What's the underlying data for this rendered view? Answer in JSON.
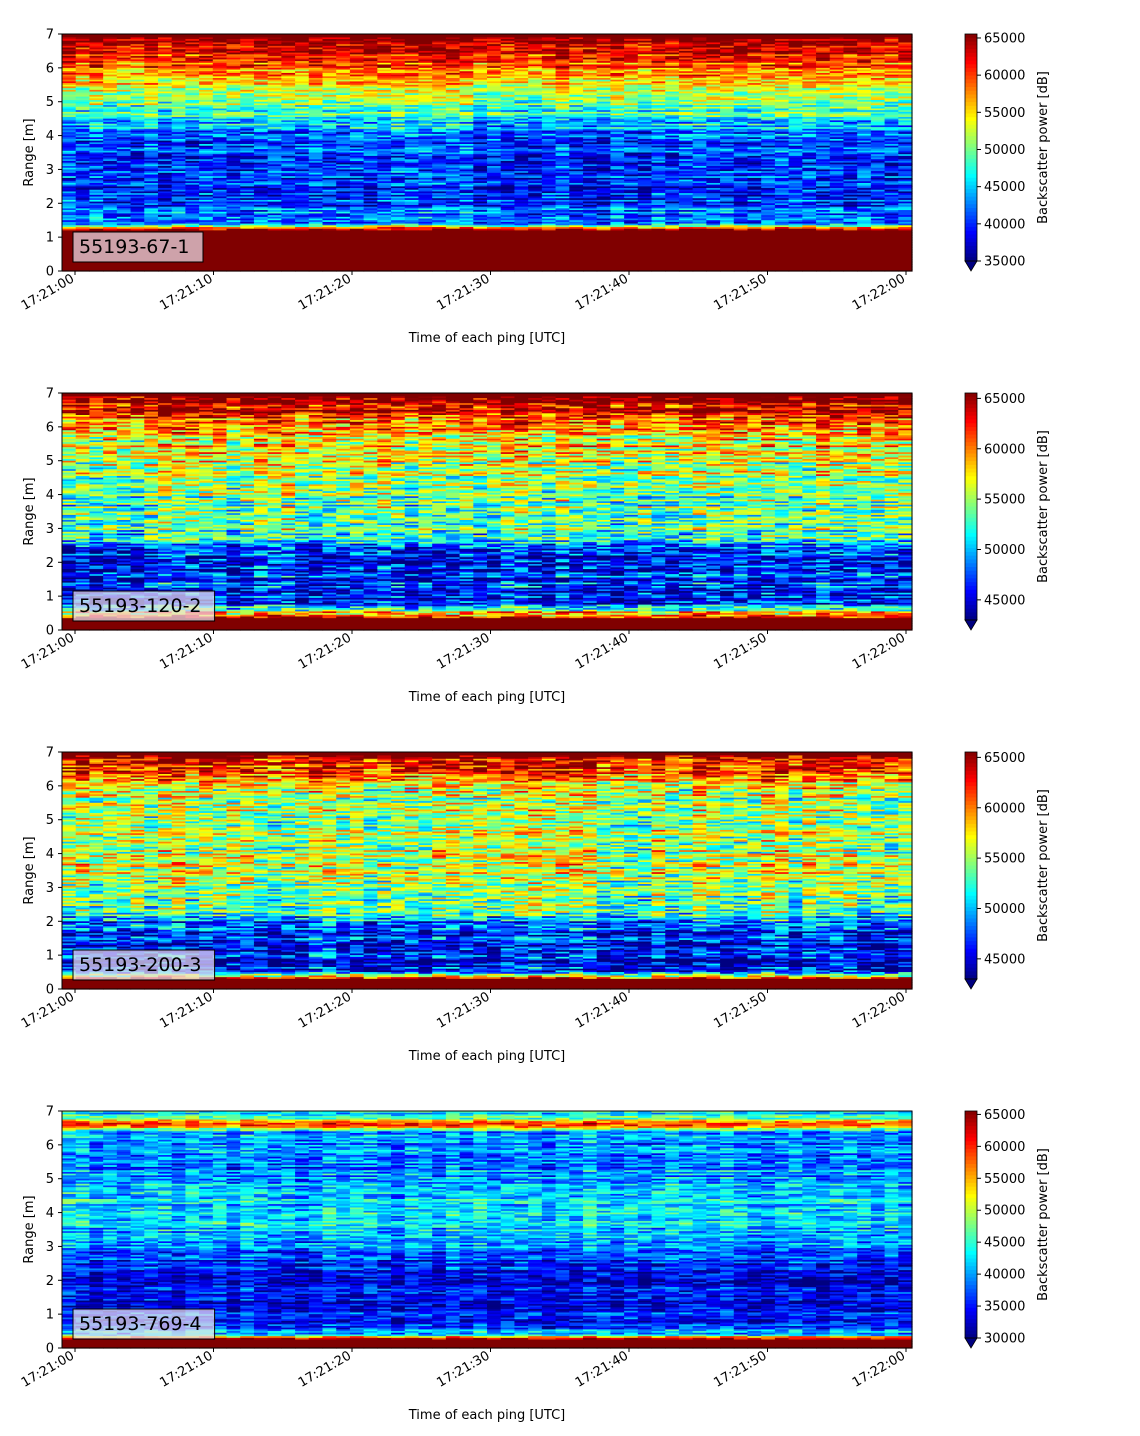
{
  "chart_data": [
    {
      "type": "heatmap",
      "label": "55193-67-1",
      "xlabel": "Time of each ping [UTC]",
      "ylabel": "Range [m]",
      "x_range": [
        "17:21:00",
        "17:22:00"
      ],
      "x_ticks": [
        "17:21:00",
        "17:21:10",
        "17:21:20",
        "17:21:30",
        "17:21:40",
        "17:21:50",
        "17:22:00"
      ],
      "ylim": [
        0,
        7
      ],
      "y_ticks": [
        "0",
        "1",
        "2",
        "3",
        "4",
        "5",
        "6",
        "7"
      ],
      "colorbar": {
        "label": "Backscatter power [dB]",
        "min": 35000,
        "max": 65535,
        "ticks": [
          "35000",
          "40000",
          "45000",
          "50000",
          "55000",
          "60000",
          "65000"
        ],
        "colormap": "jet",
        "extend": "min"
      },
      "profile_by_range_m": [
        [
          0.0,
          65535
        ],
        [
          0.25,
          65535
        ],
        [
          0.6,
          65535
        ],
        [
          1.0,
          65535
        ],
        [
          1.2,
          65535
        ],
        [
          1.4,
          42000
        ],
        [
          2.0,
          41000
        ],
        [
          2.5,
          39500
        ],
        [
          3.0,
          39500
        ],
        [
          3.5,
          40500
        ],
        [
          4.0,
          42000
        ],
        [
          4.5,
          45500
        ],
        [
          5.0,
          50500
        ],
        [
          5.5,
          54000
        ],
        [
          6.0,
          58500
        ],
        [
          6.5,
          63000
        ],
        [
          7.0,
          65535
        ]
      ]
    },
    {
      "type": "heatmap",
      "label": "55193-120-2",
      "xlabel": "Time of each ping [UTC]",
      "ylabel": "Range [m]",
      "x_range": [
        "17:21:00",
        "17:22:00"
      ],
      "x_ticks": [
        "17:21:00",
        "17:21:10",
        "17:21:20",
        "17:21:30",
        "17:21:40",
        "17:21:50",
        "17:22:00"
      ],
      "ylim": [
        0,
        7
      ],
      "y_ticks": [
        "0",
        "1",
        "2",
        "3",
        "4",
        "5",
        "6",
        "7"
      ],
      "colorbar": {
        "label": "Backscatter power [dB]",
        "min": 43000,
        "max": 65535,
        "ticks": [
          "45000",
          "50000",
          "55000",
          "60000",
          "65000"
        ],
        "colormap": "jet",
        "extend": "min"
      },
      "profile_by_range_m": [
        [
          0.0,
          65535
        ],
        [
          0.35,
          65535
        ],
        [
          0.6,
          54000
        ],
        [
          0.8,
          44500
        ],
        [
          1.2,
          46500
        ],
        [
          1.6,
          46000
        ],
        [
          2.0,
          46000
        ],
        [
          2.4,
          48000
        ],
        [
          2.7,
          52000
        ],
        [
          3.0,
          53500
        ],
        [
          3.5,
          53500
        ],
        [
          4.0,
          53500
        ],
        [
          4.5,
          54500
        ],
        [
          5.0,
          56000
        ],
        [
          5.5,
          57500
        ],
        [
          6.0,
          59000
        ],
        [
          6.5,
          63000
        ],
        [
          7.0,
          65535
        ]
      ]
    },
    {
      "type": "heatmap",
      "label": "55193-200-3",
      "xlabel": "Time of each ping [UTC]",
      "ylabel": "Range [m]",
      "x_range": [
        "17:21:00",
        "17:22:00"
      ],
      "x_ticks": [
        "17:21:00",
        "17:21:10",
        "17:21:20",
        "17:21:30",
        "17:21:40",
        "17:21:50",
        "17:22:00"
      ],
      "ylim": [
        0,
        7
      ],
      "y_ticks": [
        "0",
        "1",
        "2",
        "3",
        "4",
        "5",
        "6",
        "7"
      ],
      "colorbar": {
        "label": "Backscatter power [dB]",
        "min": 43000,
        "max": 65535,
        "ticks": [
          "45000",
          "50000",
          "55000",
          "60000",
          "65000"
        ],
        "colormap": "jet",
        "extend": "min"
      },
      "profile_by_range_m": [
        [
          0.0,
          65535
        ],
        [
          0.3,
          65535
        ],
        [
          0.5,
          47000
        ],
        [
          1.0,
          45500
        ],
        [
          1.5,
          46500
        ],
        [
          2.0,
          47500
        ],
        [
          2.3,
          53500
        ],
        [
          3.0,
          55000
        ],
        [
          3.5,
          55500
        ],
        [
          4.0,
          55000
        ],
        [
          4.5,
          55500
        ],
        [
          5.0,
          55000
        ],
        [
          5.5,
          55500
        ],
        [
          6.0,
          56500
        ],
        [
          6.5,
          62000
        ],
        [
          7.0,
          65535
        ]
      ]
    },
    {
      "type": "heatmap",
      "label": "55193-769-4",
      "xlabel": "Time of each ping [UTC]",
      "ylabel": "Range [m]",
      "x_range": [
        "17:21:00",
        "17:22:00"
      ],
      "x_ticks": [
        "17:21:00",
        "17:21:10",
        "17:21:20",
        "17:21:30",
        "17:21:40",
        "17:21:50",
        "17:22:00"
      ],
      "ylim": [
        0,
        7
      ],
      "y_ticks": [
        "0",
        "1",
        "2",
        "3",
        "4",
        "5",
        "6",
        "7"
      ],
      "colorbar": {
        "label": "Backscatter power [dB]",
        "min": 30000,
        "max": 65535,
        "ticks": [
          "30000",
          "35000",
          "40000",
          "45000",
          "50000",
          "55000",
          "60000",
          "65000"
        ],
        "colormap": "jet",
        "extend": "min"
      },
      "profile_by_range_m": [
        [
          0.0,
          65535
        ],
        [
          0.25,
          65535
        ],
        [
          0.4,
          41000
        ],
        [
          0.7,
          36000
        ],
        [
          1.0,
          35000
        ],
        [
          1.5,
          34000
        ],
        [
          2.0,
          33500
        ],
        [
          2.5,
          35500
        ],
        [
          3.0,
          38500
        ],
        [
          3.5,
          41000
        ],
        [
          4.0,
          42000
        ],
        [
          4.5,
          41500
        ],
        [
          5.0,
          40000
        ],
        [
          5.5,
          39000
        ],
        [
          6.0,
          38000
        ],
        [
          6.4,
          40000
        ],
        [
          6.6,
          62000
        ],
        [
          6.8,
          45000
        ],
        [
          7.0,
          42000
        ]
      ]
    }
  ]
}
